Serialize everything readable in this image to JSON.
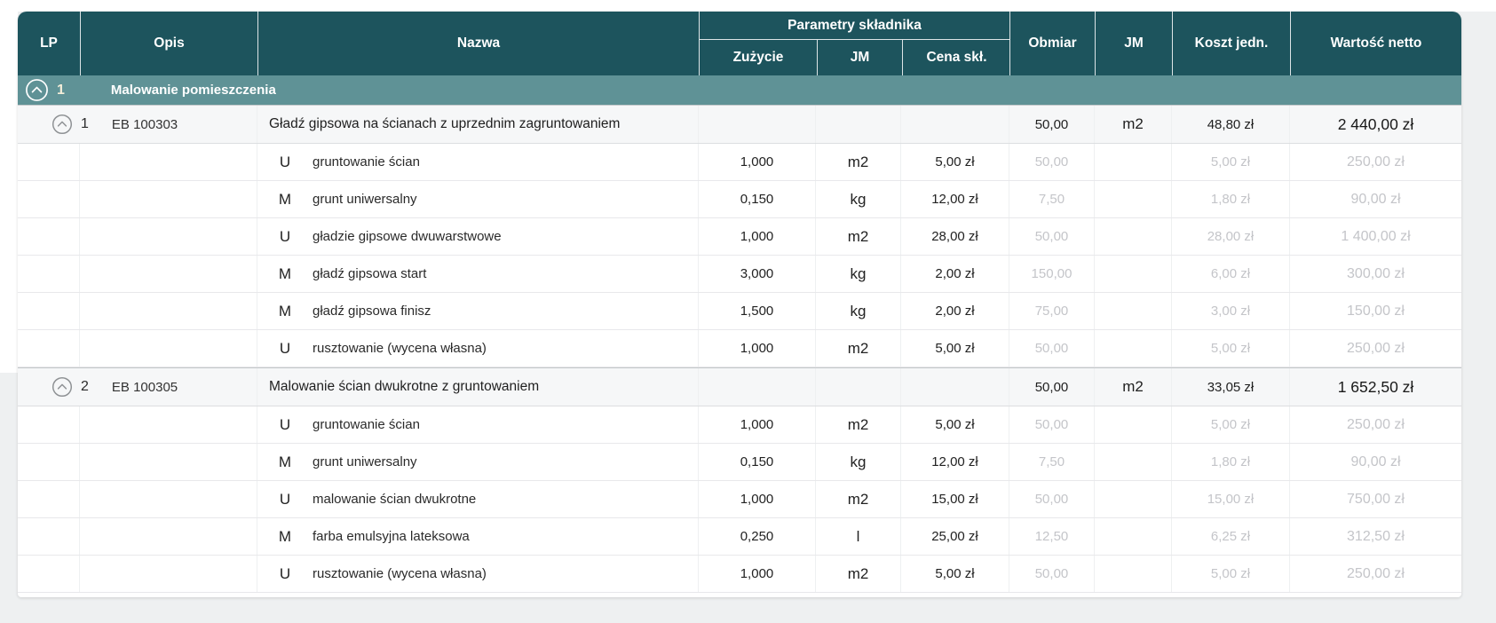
{
  "page": {
    "background": "#eef0f1"
  },
  "colors": {
    "header_bg": "#1d545d",
    "group_row_bg": "#5f9296",
    "position_row_bg": "#f6f7f8",
    "muted_value": "#c4c5c9",
    "header_text": "#ffffff"
  },
  "icons": {
    "collapse": "chevron-up-icon"
  },
  "table": {
    "headers": {
      "lp": "LP",
      "opis": "Opis",
      "nazwa": "Nazwa",
      "parametry": "Parametry składnika",
      "zuzycie": "Zużycie",
      "jm_skl": "JM",
      "cena_skl": "Cena skł.",
      "obmiar": "Obmiar",
      "jm": "JM",
      "koszt_jedn": "Koszt jedn.",
      "wartosc_netto": "Wartość netto"
    }
  },
  "groups": [
    {
      "lp": "1",
      "name": "Malowanie pomieszczenia",
      "positions": [
        {
          "lp": "1",
          "code": "EB 100303",
          "name": "Gładź gipsowa na ścianach z uprzednim zagruntowaniem",
          "obmiar": "50,00",
          "jm": "m2",
          "koszt_jedn": "48,80 zł",
          "wartosc_netto": "2 440,00 zł",
          "components": [
            {
              "type": "U",
              "name": "gruntowanie ścian",
              "zuzycie": "1,000",
              "jm": "m2",
              "cena": "5,00 zł",
              "obmiar": "50,00",
              "koszt": "5,00 zł",
              "wartosc": "250,00 zł"
            },
            {
              "type": "M",
              "name": "grunt uniwersalny",
              "zuzycie": "0,150",
              "jm": "kg",
              "cena": "12,00 zł",
              "obmiar": "7,50",
              "koszt": "1,80 zł",
              "wartosc": "90,00 zł"
            },
            {
              "type": "U",
              "name": "gładzie gipsowe dwuwarstwowe",
              "zuzycie": "1,000",
              "jm": "m2",
              "cena": "28,00 zł",
              "obmiar": "50,00",
              "koszt": "28,00 zł",
              "wartosc": "1 400,00 zł"
            },
            {
              "type": "M",
              "name": "gładź gipsowa start",
              "zuzycie": "3,000",
              "jm": "kg",
              "cena": "2,00 zł",
              "obmiar": "150,00",
              "koszt": "6,00 zł",
              "wartosc": "300,00 zł"
            },
            {
              "type": "M",
              "name": "gładź gipsowa finisz",
              "zuzycie": "1,500",
              "jm": "kg",
              "cena": "2,00 zł",
              "obmiar": "75,00",
              "koszt": "3,00 zł",
              "wartosc": "150,00 zł"
            },
            {
              "type": "U",
              "name": "rusztowanie (wycena własna)",
              "zuzycie": "1,000",
              "jm": "m2",
              "cena": "5,00 zł",
              "obmiar": "50,00",
              "koszt": "5,00 zł",
              "wartosc": "250,00 zł"
            }
          ]
        },
        {
          "lp": "2",
          "code": "EB 100305",
          "name": "Malowanie ścian dwukrotne z gruntowaniem",
          "obmiar": "50,00",
          "jm": "m2",
          "koszt_jedn": "33,05 zł",
          "wartosc_netto": "1 652,50 zł",
          "components": [
            {
              "type": "U",
              "name": "gruntowanie ścian",
              "zuzycie": "1,000",
              "jm": "m2",
              "cena": "5,00 zł",
              "obmiar": "50,00",
              "koszt": "5,00 zł",
              "wartosc": "250,00 zł"
            },
            {
              "type": "M",
              "name": "grunt uniwersalny",
              "zuzycie": "0,150",
              "jm": "kg",
              "cena": "12,00 zł",
              "obmiar": "7,50",
              "koszt": "1,80 zł",
              "wartosc": "90,00 zł"
            },
            {
              "type": "U",
              "name": "malowanie ścian dwukrotne",
              "zuzycie": "1,000",
              "jm": "m2",
              "cena": "15,00 zł",
              "obmiar": "50,00",
              "koszt": "15,00 zł",
              "wartosc": "750,00 zł"
            },
            {
              "type": "M",
              "name": "farba emulsyjna lateksowa",
              "zuzycie": "0,250",
              "jm": "l",
              "cena": "25,00 zł",
              "obmiar": "12,50",
              "koszt": "6,25 zł",
              "wartosc": "312,50 zł"
            },
            {
              "type": "U",
              "name": "rusztowanie (wycena własna)",
              "zuzycie": "1,000",
              "jm": "m2",
              "cena": "5,00 zł",
              "obmiar": "50,00",
              "koszt": "5,00 zł",
              "wartosc": "250,00 zł"
            }
          ]
        }
      ]
    }
  ]
}
